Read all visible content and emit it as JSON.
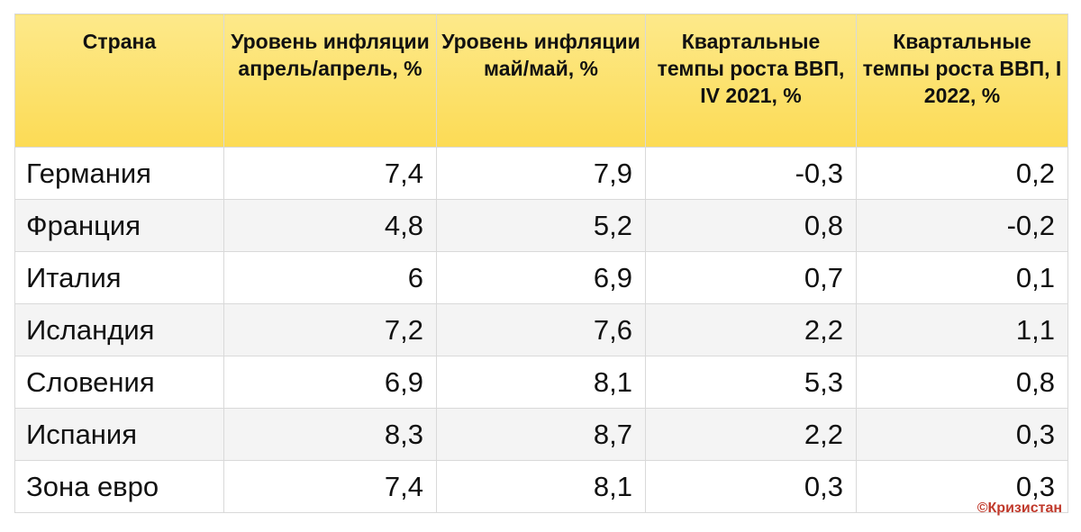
{
  "table": {
    "headers": [
      "Страна",
      "Уровень инфляции апрель/апрель, %",
      "Уровень инфляции май/май, %",
      "Квартальные темпы роста ВВП, IV 2021, %",
      "Квартальные темпы роста ВВП, I 2022, %"
    ],
    "rows": [
      [
        "Германия",
        "7,4",
        "7,9",
        "-0,3",
        "0,2"
      ],
      [
        "Франция",
        "4,8",
        "5,2",
        "0,8",
        "-0,2"
      ],
      [
        "Италия",
        "6",
        "6,9",
        "0,7",
        "0,1"
      ],
      [
        "Исландия",
        "7,2",
        "7,6",
        "2,2",
        "1,1"
      ],
      [
        "Словения",
        "6,9",
        "8,1",
        "5,3",
        "0,8"
      ],
      [
        "Испания",
        "8,3",
        "8,7",
        "2,2",
        "0,3"
      ],
      [
        "Зона евро",
        "7,4",
        "8,1",
        "0,3",
        "0,3"
      ]
    ]
  },
  "watermark": "©Кризистан",
  "colors": {
    "header_bg": "#fce26a",
    "watermark": "#c0392b"
  }
}
